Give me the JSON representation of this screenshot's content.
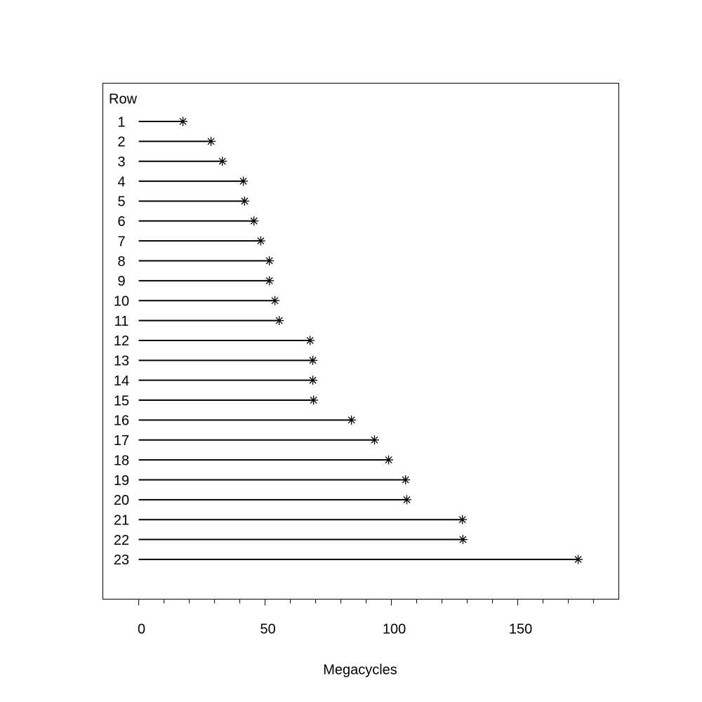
{
  "chart_data": {
    "type": "lollipop",
    "ylabel": "Row",
    "xlabel": "Megacycles",
    "categories": [
      "1",
      "2",
      "3",
      "4",
      "5",
      "6",
      "7",
      "8",
      "9",
      "10",
      "11",
      "12",
      "13",
      "14",
      "15",
      "16",
      "17",
      "18",
      "19",
      "20",
      "21",
      "22",
      "23"
    ],
    "values": [
      17.5,
      28.6,
      33.1,
      41.4,
      41.9,
      45.6,
      48.3,
      51.7,
      51.7,
      53.9,
      55.6,
      67.8,
      68.9,
      68.9,
      69.2,
      84.2,
      93.3,
      98.9,
      105.6,
      106.1,
      128.1,
      128.3,
      173.9
    ],
    "color": "#000000",
    "xlim": [
      -14.2,
      190
    ],
    "xticks": [
      0,
      50,
      100,
      150
    ],
    "xticks_minor": [
      10,
      20,
      30,
      40,
      60,
      70,
      80,
      90,
      110,
      120,
      130,
      140,
      160,
      170,
      180
    ]
  }
}
